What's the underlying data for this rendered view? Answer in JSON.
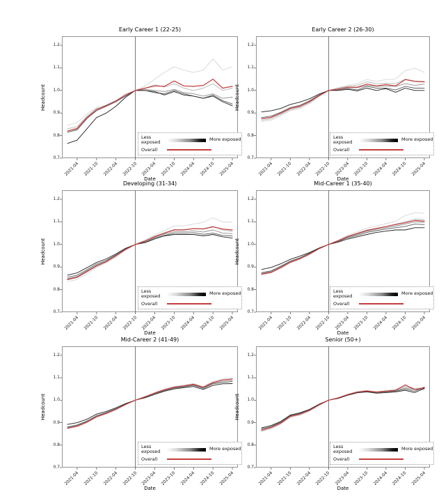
{
  "figure": {
    "background": "#ffffff"
  },
  "axes": {
    "y_ticks": [
      "1.2",
      "1.1",
      "1.0",
      "0.9",
      "0.8",
      "0.7"
    ],
    "x_ticks": [
      "2021-04",
      "2021-10",
      "2022-04",
      "2022-10",
      "2023-04",
      "2023-10",
      "2024-04",
      "2024-10",
      "2025-04"
    ]
  },
  "legend": {
    "less_label": "Less exposed",
    "more_label": "More exposed",
    "overall_label": "Overall"
  },
  "colors": {
    "overall": "#c43c3c",
    "gradient": [
      "#d6d6d6",
      "#b4b4b4",
      "#8e8e8e",
      "#5c5c5c",
      "#1f1f1f"
    ],
    "vline": "#555555",
    "spine": "#888888",
    "tick": "#444444"
  },
  "chart_data": [
    {
      "type": "line",
      "title": "Early Career 1 (22-25)",
      "xlabel": "Date",
      "ylabel": "Headcount",
      "ylim": [
        0.7,
        1.24
      ],
      "vline_x": "2022-10",
      "x": [
        "2021-01",
        "2021-04",
        "2021-07",
        "2021-10",
        "2022-01",
        "2022-04",
        "2022-07",
        "2022-10",
        "2023-01",
        "2023-04",
        "2023-07",
        "2023-10",
        "2024-01",
        "2024-04",
        "2024-07",
        "2024-10",
        "2025-01",
        "2025-04"
      ],
      "series": [
        {
          "name": "less_exposed_q1",
          "values": [
            0.845,
            0.858,
            0.895,
            0.925,
            0.935,
            0.955,
            0.985,
            1.0,
            1.02,
            1.05,
            1.08,
            1.105,
            1.09,
            1.08,
            1.09,
            1.14,
            1.09,
            1.105
          ]
        },
        {
          "name": "exposed_q2",
          "values": [
            0.83,
            0.84,
            0.885,
            0.92,
            0.93,
            0.95,
            0.98,
            1.0,
            1.01,
            1.025,
            1.015,
            1.03,
            1.01,
            1.0,
            1.01,
            1.03,
            1.0,
            1.01
          ]
        },
        {
          "name": "exposed_q3",
          "values": [
            0.82,
            0.83,
            0.88,
            0.915,
            0.935,
            0.955,
            0.98,
            1.0,
            1.005,
            1.0,
            0.995,
            1.005,
            0.99,
            0.985,
            0.975,
            0.985,
            0.965,
            0.97
          ]
        },
        {
          "name": "exposed_q4",
          "values": [
            0.815,
            0.825,
            0.875,
            0.91,
            0.93,
            0.95,
            0.975,
            1.0,
            1.0,
            0.99,
            0.985,
            1.0,
            0.985,
            0.975,
            0.965,
            0.98,
            0.955,
            0.94
          ]
        },
        {
          "name": "more_exposed_q5",
          "values": [
            0.765,
            0.78,
            0.83,
            0.88,
            0.9,
            0.93,
            0.97,
            1.0,
            1.0,
            0.995,
            0.98,
            0.995,
            0.98,
            0.975,
            0.965,
            0.975,
            0.95,
            0.932
          ]
        },
        {
          "name": "overall",
          "values": [
            0.82,
            0.832,
            0.88,
            0.915,
            0.932,
            0.953,
            0.98,
            1.0,
            1.01,
            1.02,
            1.018,
            1.042,
            1.02,
            1.018,
            1.022,
            1.05,
            1.01,
            1.018
          ]
        }
      ]
    },
    {
      "type": "line",
      "title": "Early Career 2 (26-30)",
      "xlabel": "Date",
      "ylabel": "Headcount",
      "ylim": [
        0.7,
        1.24
      ],
      "vline_x": "2022-10",
      "x": [
        "2021-01",
        "2021-04",
        "2021-07",
        "2021-10",
        "2022-01",
        "2022-04",
        "2022-07",
        "2022-10",
        "2023-01",
        "2023-04",
        "2023-07",
        "2023-10",
        "2024-01",
        "2024-04",
        "2024-07",
        "2024-10",
        "2025-01",
        "2025-04"
      ],
      "series": [
        {
          "name": "less_exposed_q1",
          "values": [
            0.862,
            0.868,
            0.888,
            0.91,
            0.92,
            0.942,
            0.972,
            1.0,
            1.012,
            1.022,
            1.03,
            1.048,
            1.04,
            1.048,
            1.05,
            1.088,
            1.098,
            1.08
          ]
        },
        {
          "name": "exposed_q2",
          "values": [
            0.868,
            0.874,
            0.893,
            0.915,
            0.925,
            0.946,
            0.975,
            1.0,
            1.01,
            1.018,
            1.022,
            1.038,
            1.03,
            1.032,
            1.03,
            1.05,
            1.042,
            1.04
          ]
        },
        {
          "name": "exposed_q3",
          "values": [
            0.874,
            0.88,
            0.898,
            0.92,
            0.93,
            0.95,
            0.978,
            1.0,
            1.006,
            1.012,
            1.012,
            1.022,
            1.018,
            1.02,
            1.018,
            1.03,
            1.022,
            1.028
          ]
        },
        {
          "name": "exposed_q4",
          "values": [
            0.88,
            0.886,
            0.903,
            0.924,
            0.934,
            0.954,
            0.98,
            1.0,
            1.002,
            1.008,
            1.002,
            1.018,
            1.01,
            1.01,
            1.002,
            1.018,
            1.01,
            1.01
          ]
        },
        {
          "name": "more_exposed_q5",
          "values": [
            0.905,
            0.91,
            0.92,
            0.938,
            0.948,
            0.963,
            0.984,
            1.0,
            1.0,
            1.005,
            0.998,
            1.01,
            1.0,
            1.008,
            0.992,
            1.01,
            1.0,
            1.0
          ]
        },
        {
          "name": "overall",
          "values": [
            0.875,
            0.881,
            0.899,
            0.92,
            0.93,
            0.95,
            0.977,
            1.0,
            1.006,
            1.014,
            1.014,
            1.028,
            1.02,
            1.026,
            1.02,
            1.048,
            1.04,
            1.038
          ]
        }
      ]
    },
    {
      "type": "line",
      "title": "Developing (31-34)",
      "xlabel": "Date",
      "ylabel": "Headcount",
      "ylim": [
        0.7,
        1.24
      ],
      "vline_x": "2022-10",
      "x": [
        "2021-01",
        "2021-04",
        "2021-07",
        "2021-10",
        "2022-01",
        "2022-04",
        "2022-07",
        "2022-10",
        "2023-01",
        "2023-04",
        "2023-07",
        "2023-10",
        "2024-01",
        "2024-04",
        "2024-07",
        "2024-10",
        "2025-01",
        "2025-04"
      ],
      "series": [
        {
          "name": "less_exposed_q1",
          "values": [
            0.835,
            0.845,
            0.87,
            0.898,
            0.918,
            0.943,
            0.974,
            1.0,
            1.02,
            1.042,
            1.062,
            1.082,
            1.082,
            1.09,
            1.098,
            1.118,
            1.1,
            1.098
          ]
        },
        {
          "name": "exposed_q2",
          "values": [
            0.843,
            0.853,
            0.878,
            0.903,
            0.922,
            0.948,
            0.977,
            1.0,
            1.016,
            1.036,
            1.052,
            1.066,
            1.066,
            1.07,
            1.07,
            1.08,
            1.064,
            1.058
          ]
        },
        {
          "name": "exposed_q3",
          "values": [
            0.848,
            0.858,
            0.883,
            0.908,
            0.926,
            0.951,
            0.979,
            1.0,
            1.014,
            1.032,
            1.046,
            1.056,
            1.056,
            1.06,
            1.055,
            1.064,
            1.05,
            1.048
          ]
        },
        {
          "name": "exposed_q4",
          "values": [
            0.855,
            0.864,
            0.888,
            0.913,
            0.93,
            0.954,
            0.98,
            1.0,
            1.01,
            1.028,
            1.04,
            1.05,
            1.05,
            1.052,
            1.045,
            1.05,
            1.04,
            1.038
          ]
        },
        {
          "name": "more_exposed_q5",
          "values": [
            0.864,
            0.874,
            0.897,
            0.92,
            0.936,
            0.958,
            0.983,
            1.0,
            1.008,
            1.024,
            1.038,
            1.044,
            1.044,
            1.044,
            1.038,
            1.044,
            1.034,
            1.028
          ]
        },
        {
          "name": "overall",
          "values": [
            0.845,
            0.855,
            0.88,
            0.905,
            0.924,
            0.95,
            0.978,
            1.0,
            1.015,
            1.035,
            1.05,
            1.064,
            1.064,
            1.07,
            1.068,
            1.078,
            1.068,
            1.064
          ]
        }
      ]
    },
    {
      "type": "line",
      "title": "Mid-Career 1 (35-40)",
      "xlabel": "Date",
      "ylabel": "Headcount",
      "ylim": [
        0.7,
        1.24
      ],
      "vline_x": "2022-10",
      "x": [
        "2021-01",
        "2021-04",
        "2021-07",
        "2021-10",
        "2022-01",
        "2022-04",
        "2022-07",
        "2022-10",
        "2023-01",
        "2023-04",
        "2023-07",
        "2023-10",
        "2024-01",
        "2024-04",
        "2024-07",
        "2024-10",
        "2025-01",
        "2025-04"
      ],
      "series": [
        {
          "name": "less_exposed_q1",
          "values": [
            0.867,
            0.874,
            0.894,
            0.918,
            0.934,
            0.954,
            0.98,
            1.0,
            1.02,
            1.04,
            1.056,
            1.072,
            1.082,
            1.092,
            1.102,
            1.128,
            1.14,
            1.138
          ]
        },
        {
          "name": "exposed_q2",
          "values": [
            0.87,
            0.877,
            0.898,
            0.921,
            0.937,
            0.957,
            0.981,
            1.0,
            1.017,
            1.036,
            1.05,
            1.064,
            1.072,
            1.08,
            1.09,
            1.1,
            1.112,
            1.11
          ]
        },
        {
          "name": "exposed_q3",
          "values": [
            0.872,
            0.88,
            0.901,
            0.924,
            0.939,
            0.959,
            0.982,
            1.0,
            1.015,
            1.033,
            1.045,
            1.058,
            1.067,
            1.074,
            1.081,
            1.09,
            1.1,
            1.098
          ]
        },
        {
          "name": "exposed_q4",
          "values": [
            0.875,
            0.883,
            0.904,
            0.926,
            0.941,
            0.961,
            0.984,
            1.0,
            1.012,
            1.03,
            1.04,
            1.053,
            1.061,
            1.068,
            1.074,
            1.08,
            1.09,
            1.088
          ]
        },
        {
          "name": "more_exposed_q5",
          "values": [
            0.889,
            0.898,
            0.914,
            0.934,
            0.948,
            0.964,
            0.984,
            1.0,
            1.01,
            1.024,
            1.034,
            1.044,
            1.053,
            1.059,
            1.064,
            1.064,
            1.074,
            1.074
          ]
        },
        {
          "name": "overall",
          "values": [
            0.868,
            0.876,
            0.897,
            0.921,
            0.937,
            0.957,
            0.981,
            1.0,
            1.016,
            1.035,
            1.048,
            1.062,
            1.071,
            1.079,
            1.088,
            1.096,
            1.106,
            1.103
          ]
        }
      ]
    },
    {
      "type": "line",
      "title": "Mid-Career 2 (41-49)",
      "xlabel": "Date",
      "ylabel": "Headcount",
      "ylim": [
        0.7,
        1.24
      ],
      "vline_x": "2022-10",
      "x": [
        "2021-01",
        "2021-04",
        "2021-07",
        "2021-10",
        "2022-01",
        "2022-04",
        "2022-07",
        "2022-10",
        "2023-01",
        "2023-04",
        "2023-07",
        "2023-10",
        "2024-01",
        "2024-04",
        "2024-07",
        "2024-10",
        "2025-01",
        "2025-04"
      ],
      "series": [
        {
          "name": "less_exposed_q1",
          "values": [
            0.873,
            0.882,
            0.9,
            0.924,
            0.939,
            0.957,
            0.98,
            1.0,
            1.017,
            1.034,
            1.049,
            1.061,
            1.067,
            1.074,
            1.06,
            1.084,
            1.094,
            1.099
          ]
        },
        {
          "name": "exposed_q2",
          "values": [
            0.876,
            0.885,
            0.903,
            0.926,
            0.941,
            0.959,
            0.981,
            1.0,
            1.016,
            1.032,
            1.047,
            1.059,
            1.064,
            1.071,
            1.058,
            1.079,
            1.089,
            1.094
          ]
        },
        {
          "name": "exposed_q3",
          "values": [
            0.878,
            0.887,
            0.905,
            0.929,
            0.943,
            0.961,
            0.982,
            1.0,
            1.014,
            1.031,
            1.045,
            1.056,
            1.062,
            1.068,
            1.056,
            1.076,
            1.084,
            1.088
          ]
        },
        {
          "name": "exposed_q4",
          "values": [
            0.881,
            0.89,
            0.907,
            0.931,
            0.945,
            0.962,
            0.983,
            1.0,
            1.013,
            1.029,
            1.043,
            1.054,
            1.059,
            1.066,
            1.053,
            1.073,
            1.079,
            1.083
          ]
        },
        {
          "name": "more_exposed_q5",
          "values": [
            0.892,
            0.9,
            0.915,
            0.938,
            0.95,
            0.966,
            0.985,
            1.0,
            1.011,
            1.026,
            1.04,
            1.05,
            1.056,
            1.061,
            1.048,
            1.066,
            1.073,
            1.074
          ]
        },
        {
          "name": "overall",
          "values": [
            0.875,
            0.884,
            0.902,
            0.926,
            0.941,
            0.959,
            0.981,
            1.0,
            1.015,
            1.032,
            1.047,
            1.058,
            1.064,
            1.071,
            1.058,
            1.079,
            1.09,
            1.094
          ]
        }
      ]
    },
    {
      "type": "line",
      "title": "Senior (50+)",
      "xlabel": "Date",
      "ylabel": "Headcount",
      "ylim": [
        0.7,
        1.24
      ],
      "vline_x": "2022-10",
      "x": [
        "2021-01",
        "2021-04",
        "2021-07",
        "2021-10",
        "2022-01",
        "2022-04",
        "2022-07",
        "2022-10",
        "2023-01",
        "2023-04",
        "2023-07",
        "2023-10",
        "2024-01",
        "2024-04",
        "2024-07",
        "2024-10",
        "2025-01",
        "2025-04"
      ],
      "series": [
        {
          "name": "less_exposed_q1",
          "values": [
            0.86,
            0.873,
            0.893,
            0.923,
            0.933,
            0.95,
            0.976,
            1.0,
            1.012,
            1.027,
            1.039,
            1.044,
            1.038,
            1.043,
            1.048,
            1.064,
            1.053,
            1.058
          ]
        },
        {
          "name": "exposed_q2",
          "values": [
            0.864,
            0.876,
            0.896,
            0.926,
            0.936,
            0.953,
            0.978,
            1.0,
            1.011,
            1.026,
            1.037,
            1.042,
            1.037,
            1.041,
            1.046,
            1.059,
            1.049,
            1.053
          ]
        },
        {
          "name": "exposed_q3",
          "values": [
            0.868,
            0.88,
            0.899,
            0.928,
            0.938,
            0.955,
            0.979,
            1.0,
            1.01,
            1.025,
            1.036,
            1.041,
            1.035,
            1.039,
            1.043,
            1.054,
            1.047,
            1.049
          ]
        },
        {
          "name": "exposed_q4",
          "values": [
            0.872,
            0.883,
            0.902,
            0.931,
            0.941,
            0.957,
            0.981,
            1.0,
            1.009,
            1.024,
            1.035,
            1.039,
            1.034,
            1.037,
            1.04,
            1.049,
            1.04,
            1.058
          ]
        },
        {
          "name": "more_exposed_q5",
          "values": [
            0.877,
            0.887,
            0.905,
            0.934,
            0.944,
            0.959,
            0.982,
            1.0,
            1.008,
            1.022,
            1.033,
            1.037,
            1.031,
            1.034,
            1.037,
            1.044,
            1.034,
            1.053
          ]
        },
        {
          "name": "overall",
          "values": [
            0.867,
            0.879,
            0.898,
            0.928,
            0.938,
            0.955,
            0.979,
            1.0,
            1.01,
            1.025,
            1.036,
            1.041,
            1.036,
            1.04,
            1.044,
            1.068,
            1.048,
            1.055
          ]
        }
      ]
    }
  ]
}
